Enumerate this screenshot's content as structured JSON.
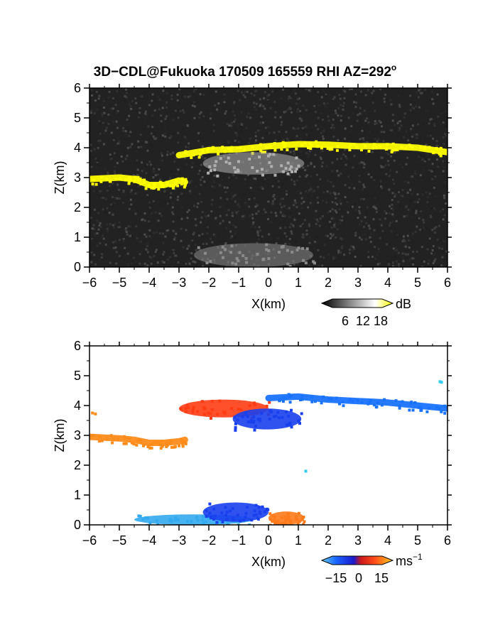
{
  "figure": {
    "title": "3D−CDL@Fukuoka 170509 165559 RHI AZ=292",
    "title_degree": "o"
  },
  "chart_data": [
    {
      "type": "heatmap",
      "panel": "reflectivity",
      "xlabel": "X(km)",
      "ylabel": "Z(km)",
      "xlim": [
        -6,
        6
      ],
      "ylim": [
        0,
        6
      ],
      "xticks": [
        "−6",
        "−5",
        "−4",
        "−3",
        "−2",
        "−1",
        "0",
        "1",
        "2",
        "3",
        "4",
        "5",
        "6"
      ],
      "yticks": [
        "0",
        "1",
        "2",
        "3",
        "4",
        "5",
        "6"
      ],
      "colorbar": {
        "unit": "dB",
        "ticks": [
          "6",
          "12",
          "18"
        ],
        "range": [
          0,
          24
        ],
        "colors": [
          "#000000",
          "#ffffff",
          "#ffff00"
        ]
      },
      "background": "#222222",
      "features": [
        {
          "name": "left-layer",
          "value": 20,
          "color": "#ffff00",
          "points": [
            [
              -6.0,
              2.95
            ],
            [
              -5.0,
              3.0
            ],
            [
              -4.5,
              2.95
            ],
            [
              -4.0,
              2.75
            ],
            [
              -3.5,
              2.75
            ],
            [
              -3.0,
              2.9
            ],
            [
              -2.8,
              2.85
            ]
          ]
        },
        {
          "name": "upper-layer",
          "value": 20,
          "color": "#ffff00",
          "points": [
            [
              -3.0,
              3.75
            ],
            [
              -2.0,
              3.92
            ],
            [
              -1.0,
              3.95
            ],
            [
              0.0,
              4.05
            ],
            [
              1.0,
              4.12
            ],
            [
              2.0,
              4.1
            ],
            [
              3.0,
              4.05
            ],
            [
              4.0,
              4.05
            ],
            [
              5.0,
              4.0
            ],
            [
              6.0,
              3.85
            ]
          ]
        },
        {
          "name": "mid-echo",
          "value": 12,
          "color": "#b0b0b0",
          "x_range": [
            -2.2,
            1.2
          ],
          "z_range": [
            3.1,
            3.85
          ]
        },
        {
          "name": "surface-echo",
          "value": 8,
          "color": "#8a8a8a",
          "x_range": [
            -2.5,
            1.5
          ],
          "z_range": [
            0.0,
            0.8
          ]
        }
      ]
    },
    {
      "type": "heatmap",
      "panel": "doppler-velocity",
      "xlabel": "X(km)",
      "ylabel": "Z(km)",
      "xlim": [
        -6,
        6
      ],
      "ylim": [
        0,
        6
      ],
      "xticks": [
        "−6",
        "−5",
        "−4",
        "−3",
        "−2",
        "−1",
        "0",
        "1",
        "2",
        "3",
        "4",
        "5",
        "6"
      ],
      "yticks": [
        "0",
        "1",
        "2",
        "3",
        "4",
        "5",
        "6"
      ],
      "colorbar": {
        "unit": "ms",
        "unit_exp": "−1",
        "ticks": [
          "−15",
          "0",
          "15"
        ],
        "range": [
          -22,
          22
        ],
        "colors": [
          "#66ccee",
          "#1a66ff",
          "#1a1acc",
          "#cc1a1a",
          "#ff4d1a",
          "#ff9a1a",
          "#ffcc33"
        ]
      },
      "background": "#ffffff",
      "features": [
        {
          "name": "left-layer",
          "value": 11,
          "color": "#ff8c1a",
          "points": [
            [
              -6.0,
              2.95
            ],
            [
              -5.0,
              2.9
            ],
            [
              -4.5,
              2.85
            ],
            [
              -4.0,
              2.75
            ],
            [
              -3.5,
              2.75
            ],
            [
              -3.0,
              2.8
            ],
            [
              -2.8,
              2.85
            ]
          ]
        },
        {
          "name": "upper-warm-core",
          "value": 5,
          "color": "#ff3c14",
          "x_range": [
            -3.0,
            0.0
          ],
          "z_range": [
            3.6,
            4.2
          ]
        },
        {
          "name": "upper-layer",
          "value": -14,
          "color": "#1a73ff",
          "points": [
            [
              0.0,
              4.25
            ],
            [
              1.0,
              4.3
            ],
            [
              2.0,
              4.2
            ],
            [
              3.0,
              4.15
            ],
            [
              4.0,
              4.1
            ],
            [
              5.0,
              4.0
            ],
            [
              6.0,
              3.9
            ]
          ]
        },
        {
          "name": "mid-cold-core",
          "value": -10,
          "color": "#1a40ee",
          "x_range": [
            -1.2,
            1.1
          ],
          "z_range": [
            3.2,
            3.9
          ]
        },
        {
          "name": "surface-approach",
          "value": -15,
          "color": "#33aaee",
          "x_range": [
            -4.5,
            -0.5
          ],
          "z_range": [
            0.0,
            0.35
          ]
        },
        {
          "name": "surface-core",
          "value": -11,
          "color": "#1a40ee",
          "x_range": [
            -2.2,
            0.0
          ],
          "z_range": [
            0.1,
            0.75
          ]
        },
        {
          "name": "surface-recede",
          "value": 8,
          "color": "#ff7a1a",
          "x_range": [
            0.0,
            1.2
          ],
          "z_range": [
            0.0,
            0.45
          ]
        }
      ],
      "isolated_points": [
        [
          -5.9,
          3.75
        ],
        [
          -5.8,
          3.72
        ],
        [
          5.75,
          4.8
        ],
        [
          5.8,
          4.78
        ],
        [
          1.25,
          1.8
        ]
      ]
    }
  ]
}
